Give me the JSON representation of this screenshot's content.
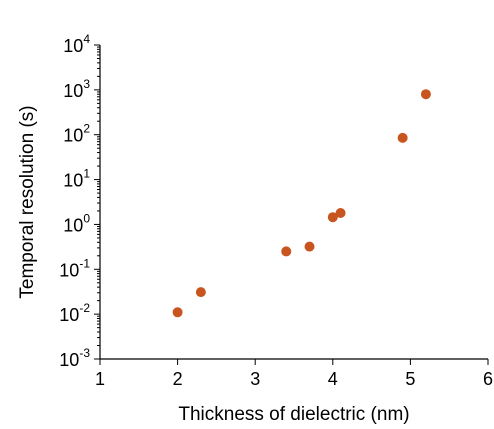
{
  "chart_data": {
    "type": "scatter",
    "title": "",
    "xlabel": "Thickness of dielectric (nm)",
    "ylabel": "Temporal resolution (s)",
    "xlim": [
      1,
      6
    ],
    "ylim": [
      0.001,
      10000
    ],
    "y_scale": "log",
    "grid": false,
    "legend": "none",
    "x_ticks": [
      {
        "value": 1,
        "label": "1"
      },
      {
        "value": 2,
        "label": "2"
      },
      {
        "value": 3,
        "label": "3"
      },
      {
        "value": 4,
        "label": "4"
      },
      {
        "value": 5,
        "label": "5"
      },
      {
        "value": 6,
        "label": "6"
      }
    ],
    "y_ticks": [
      {
        "value": 0.001,
        "base": "10",
        "exp": "-3"
      },
      {
        "value": 0.01,
        "base": "10",
        "exp": "-2"
      },
      {
        "value": 0.1,
        "base": "10",
        "exp": "-1"
      },
      {
        "value": 1,
        "base": "10",
        "exp": "0"
      },
      {
        "value": 10,
        "base": "10",
        "exp": "1"
      },
      {
        "value": 100,
        "base": "10",
        "exp": "2"
      },
      {
        "value": 1000,
        "base": "10",
        "exp": "3"
      },
      {
        "value": 10000,
        "base": "10",
        "exp": "4"
      }
    ],
    "series": [
      {
        "color": "#c8551f",
        "points": [
          {
            "x": 2.0,
            "y": 0.011
          },
          {
            "x": 2.3,
            "y": 0.031
          },
          {
            "x": 3.4,
            "y": 0.25
          },
          {
            "x": 3.7,
            "y": 0.32
          },
          {
            "x": 4.0,
            "y": 1.45
          },
          {
            "x": 4.1,
            "y": 1.8
          },
          {
            "x": 4.9,
            "y": 85
          },
          {
            "x": 5.2,
            "y": 800
          }
        ]
      }
    ]
  }
}
